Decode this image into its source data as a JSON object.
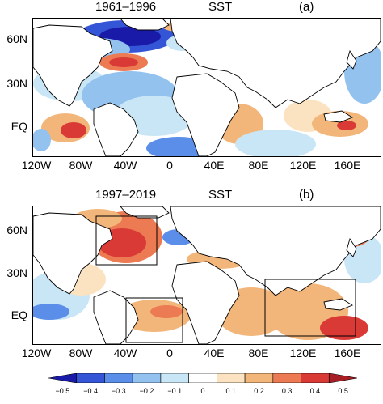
{
  "panels": [
    {
      "period": "1961–1996",
      "variable": "SST",
      "tag": "(a)"
    },
    {
      "period": "1997–2019",
      "variable": "SST",
      "tag": "(b)"
    }
  ],
  "lat_labels": [
    "60N",
    "30N",
    "EQ"
  ],
  "lon_labels": [
    "120W",
    "80W",
    "40W",
    "0",
    "40E",
    "80E",
    "120E",
    "160E"
  ],
  "colorbar": {
    "ticks": [
      "−0.5",
      "−0.4",
      "−0.3",
      "−0.2",
      "−0.1",
      "0",
      "0.1",
      "0.2",
      "0.3",
      "0.4",
      "0.5"
    ],
    "colors": [
      "#1a1aa8",
      "#3355d6",
      "#5a8ee8",
      "#93c2ef",
      "#c9e6f6",
      "#ffffff",
      "#fbe3c2",
      "#f3b67a",
      "#ec7a52",
      "#d93a36",
      "#a71f24"
    ]
  }
}
